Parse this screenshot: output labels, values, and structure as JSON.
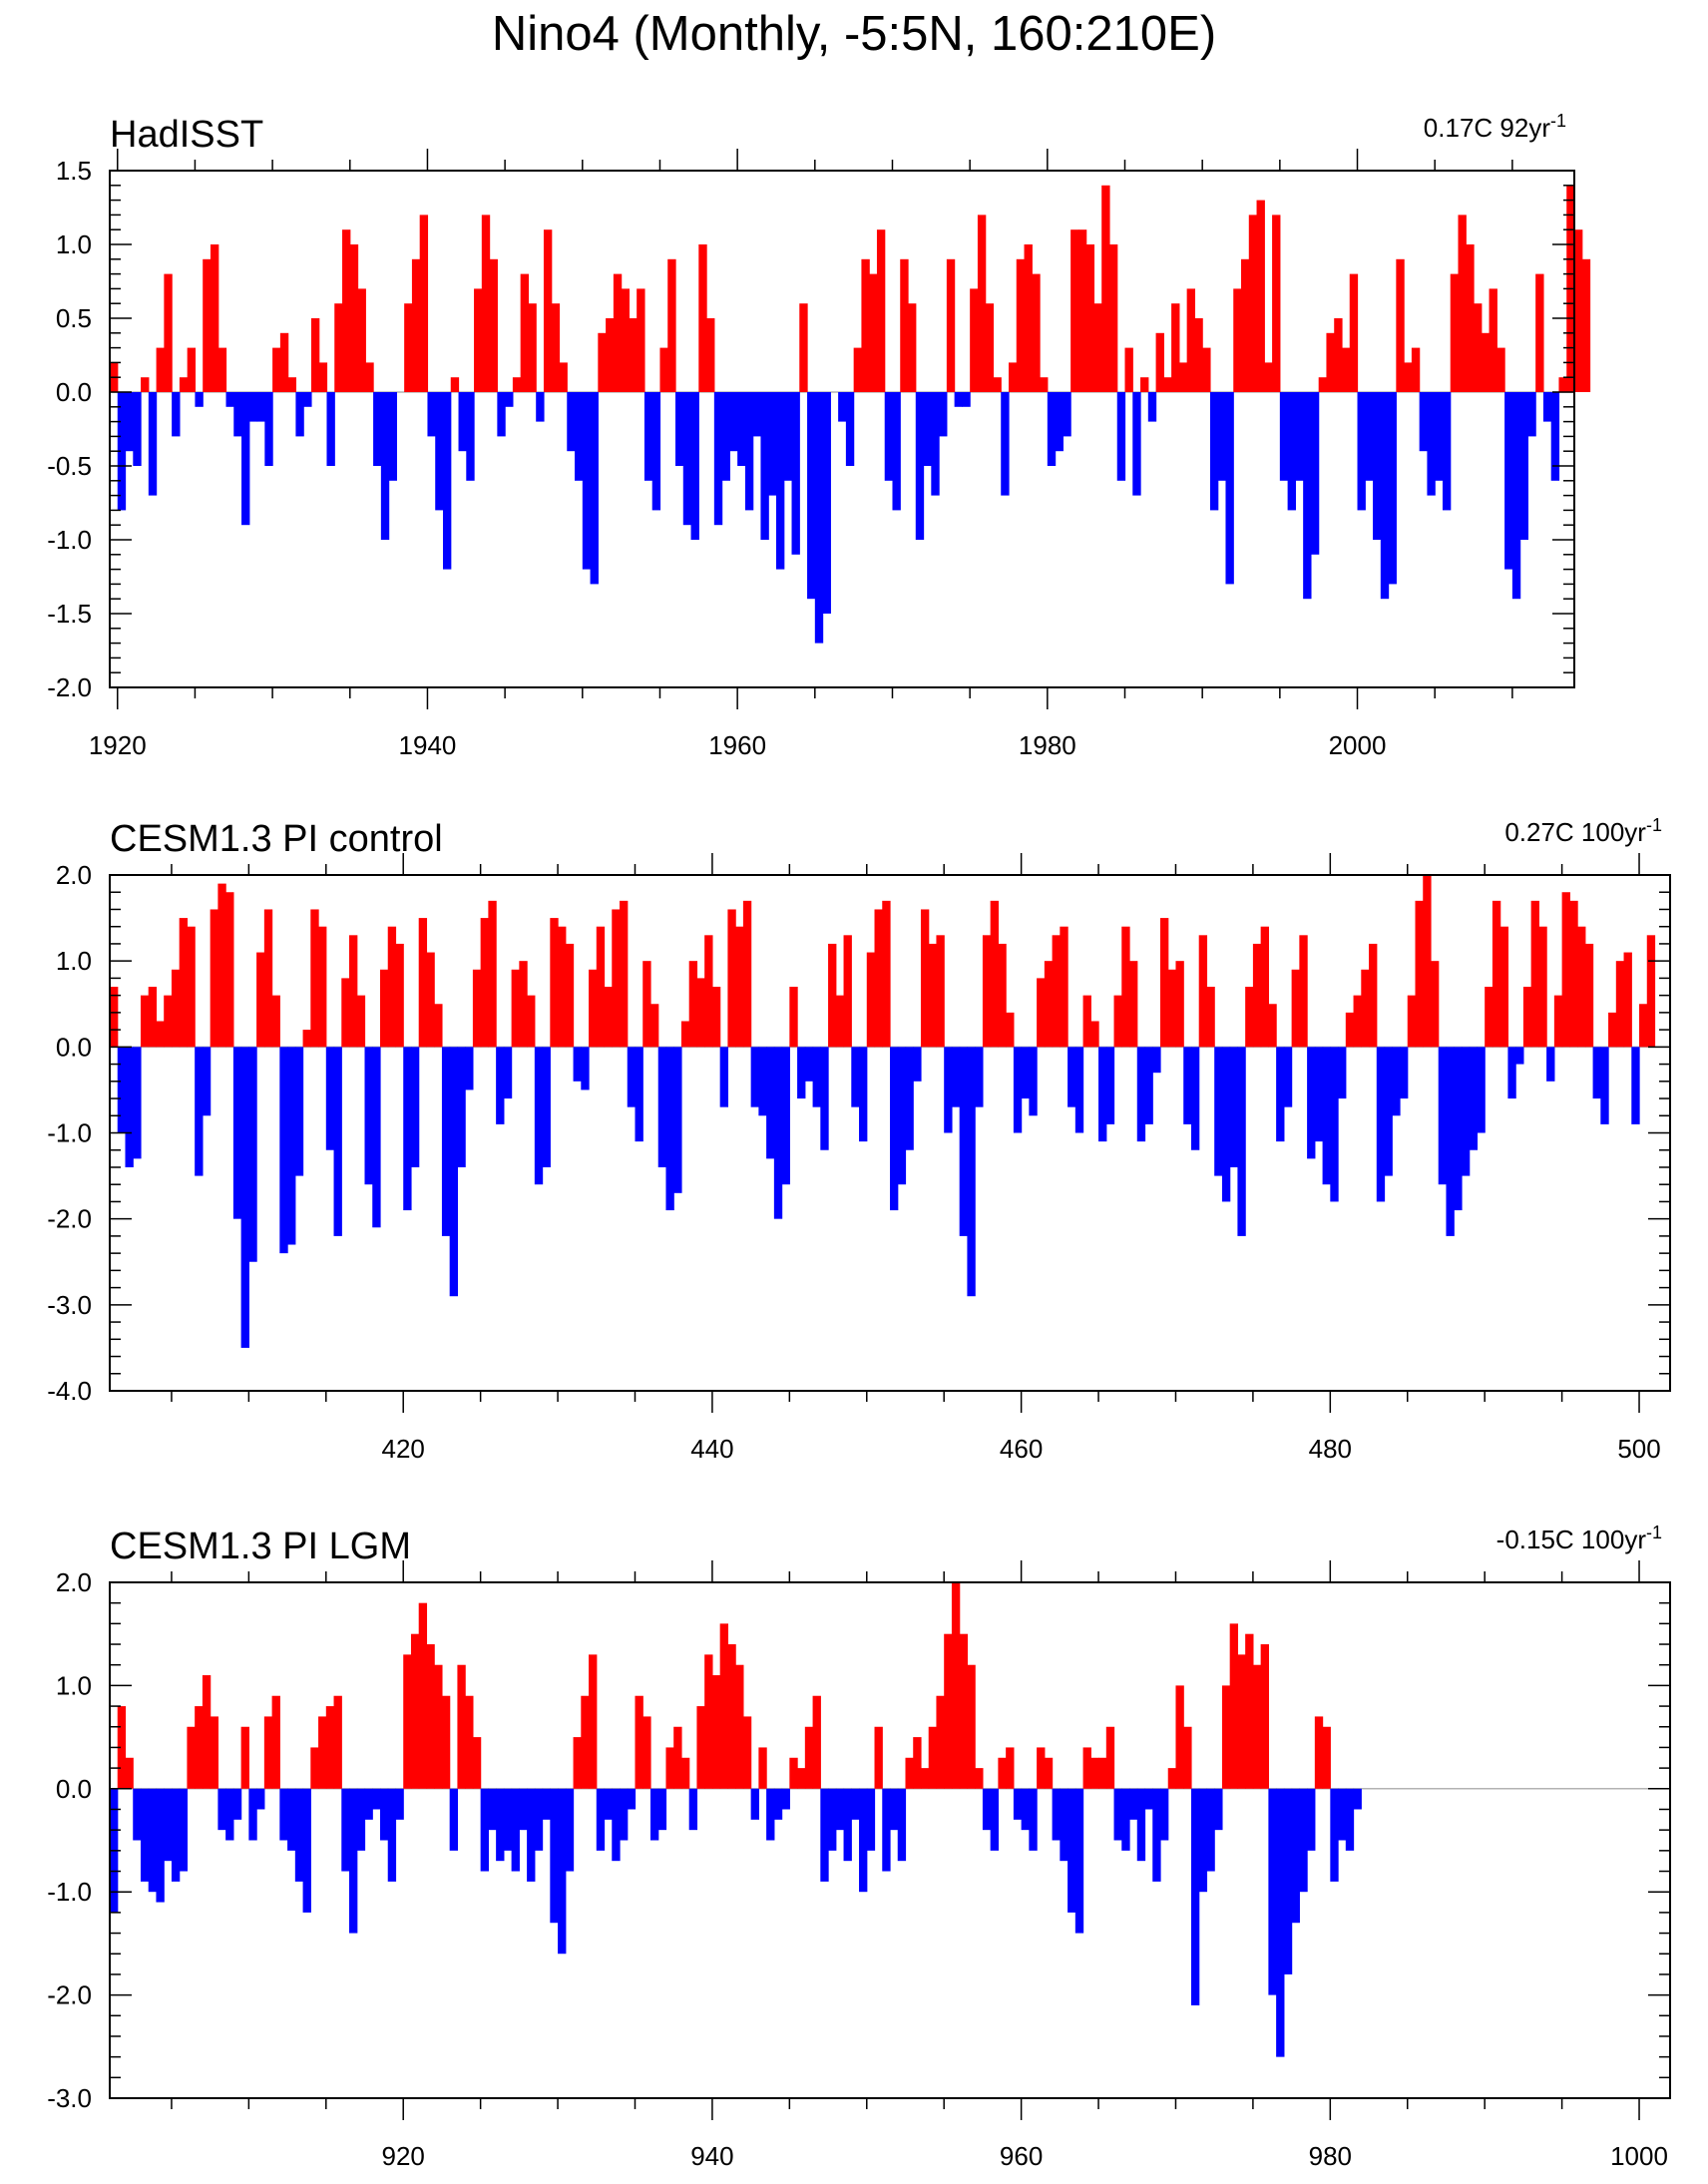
{
  "title": "Nino4 (Monthly, -5:5N, 160:210E)",
  "colors": {
    "positive": "#ff0000",
    "negative": "#0000ff",
    "axis": "#000000",
    "zero_line": "#b3b3b3"
  },
  "chart_data": [
    {
      "type": "area",
      "title": "HadISST",
      "trend_label": {
        "value": "0.17C 92yr",
        "superscript": "-1"
      },
      "xlabel": "",
      "ylabel": "",
      "xlim": [
        1919.5,
        2014
      ],
      "ylim": [
        -2.0,
        1.5
      ],
      "grid": false,
      "x_ticks": [
        "1920",
        "1940",
        "1960",
        "1980",
        "2000"
      ],
      "x_tick_values": [
        1920,
        1940,
        1960,
        1980,
        2000
      ],
      "y_ticks": [
        "1.5",
        "1.0",
        "0.5",
        "0.0",
        "-0.5",
        "-1.0",
        "-1.5",
        "-2.0"
      ],
      "y_tick_values": [
        1.5,
        1.0,
        0.5,
        0.0,
        -0.5,
        -1.0,
        -1.5,
        -2.0
      ],
      "x_start": 1919.5,
      "x_step": 0.5,
      "values": [
        0.2,
        -0.8,
        -0.4,
        -0.5,
        0.1,
        -0.7,
        0.3,
        0.8,
        -0.3,
        0.1,
        0.3,
        -0.1,
        0.9,
        1.0,
        0.3,
        -0.1,
        -0.3,
        -0.9,
        -0.2,
        -0.2,
        -0.5,
        0.3,
        0.4,
        0.1,
        -0.3,
        -0.1,
        0.5,
        0.2,
        -0.5,
        0.6,
        1.1,
        1.0,
        0.7,
        0.2,
        -0.5,
        -1.0,
        -0.6,
        0.0,
        0.6,
        0.9,
        1.2,
        -0.3,
        -0.8,
        -1.2,
        0.1,
        -0.4,
        -0.6,
        0.7,
        1.2,
        0.9,
        -0.3,
        -0.1,
        0.1,
        0.8,
        0.6,
        -0.2,
        1.1,
        0.6,
        0.2,
        -0.4,
        -0.6,
        -1.2,
        -1.3,
        0.4,
        0.5,
        0.8,
        0.7,
        0.5,
        0.7,
        -0.6,
        -0.8,
        0.3,
        0.9,
        -0.5,
        -0.9,
        -1.0,
        1.0,
        0.5,
        -0.9,
        -0.6,
        -0.4,
        -0.5,
        -0.8,
        -0.3,
        -1.0,
        -0.7,
        -1.2,
        -0.6,
        -1.1,
        0.6,
        -1.4,
        -1.7,
        -1.5,
        0.0,
        -0.2,
        -0.5,
        0.3,
        0.9,
        0.8,
        1.1,
        -0.6,
        -0.8,
        0.9,
        0.6,
        -1.0,
        -0.5,
        -0.7,
        -0.3,
        0.9,
        -0.1,
        -0.1,
        0.7,
        1.2,
        0.6,
        0.1,
        -0.7,
        0.2,
        0.9,
        1.0,
        0.8,
        0.1,
        -0.5,
        -0.4,
        -0.3,
        1.1,
        1.1,
        1.0,
        0.6,
        1.4,
        1.0,
        -0.6,
        0.3,
        -0.7,
        0.1,
        -0.2,
        0.4,
        0.1,
        0.6,
        0.2,
        0.7,
        0.5,
        0.3,
        -0.8,
        -0.6,
        -1.3,
        0.7,
        0.9,
        1.2,
        1.3,
        0.2,
        1.2,
        -0.6,
        -0.8,
        -0.6,
        -1.4,
        -1.1,
        0.1,
        0.4,
        0.5,
        0.3,
        0.8,
        -0.8,
        -0.6,
        -1.0,
        -1.4,
        -1.3,
        0.9,
        0.2,
        0.3,
        -0.4,
        -0.7,
        -0.6,
        -0.8,
        0.8,
        1.2,
        1.0,
        0.6,
        0.4,
        0.7,
        0.3,
        -1.2,
        -1.4,
        -1.0,
        -0.3,
        0.8,
        -0.2,
        -0.6,
        0.1,
        1.4,
        1.1,
        0.9
      ]
    },
    {
      "type": "area",
      "title": "CESM1.3 PI control",
      "trend_label": {
        "value": "0.27C 100yr",
        "superscript": "-1"
      },
      "xlabel": "",
      "ylabel": "",
      "xlim": [
        401,
        502
      ],
      "ylim": [
        -4.0,
        2.0
      ],
      "grid": false,
      "x_ticks": [
        "420",
        "440",
        "460",
        "480",
        "500"
      ],
      "x_tick_values": [
        420,
        440,
        460,
        480,
        500
      ],
      "y_ticks": [
        "2.0",
        "1.0",
        "0.0",
        "-1.0",
        "-2.0",
        "-3.0",
        "-4.0"
      ],
      "y_tick_values": [
        2.0,
        1.0,
        0.0,
        -1.0,
        -2.0,
        -3.0,
        -4.0
      ],
      "x_start": 401,
      "x_step": 0.5,
      "values": [
        0.7,
        -1.0,
        -1.4,
        -1.3,
        0.6,
        0.7,
        0.3,
        0.6,
        0.9,
        1.5,
        1.4,
        -1.5,
        -0.8,
        1.6,
        1.9,
        1.8,
        -2.0,
        -3.5,
        -2.5,
        1.1,
        1.6,
        0.6,
        -2.4,
        -2.3,
        -1.5,
        0.2,
        1.6,
        1.4,
        -1.2,
        -2.2,
        0.8,
        1.3,
        0.6,
        -1.6,
        -2.1,
        0.9,
        1.4,
        1.2,
        -1.9,
        -1.4,
        1.5,
        1.1,
        0.5,
        -2.2,
        -2.9,
        -1.4,
        -0.5,
        0.9,
        1.5,
        1.7,
        -0.9,
        -0.6,
        0.9,
        1.0,
        0.6,
        -1.6,
        -1.4,
        1.5,
        1.4,
        1.2,
        -0.4,
        -0.5,
        0.9,
        1.4,
        0.7,
        1.6,
        1.7,
        -0.7,
        -1.1,
        1.0,
        0.5,
        -1.4,
        -1.9,
        -1.7,
        0.3,
        1.0,
        0.8,
        1.3,
        0.7,
        -0.7,
        1.6,
        1.4,
        1.7,
        -0.7,
        -0.8,
        -1.3,
        -2.0,
        -1.6,
        0.7,
        -0.6,
        -0.4,
        -0.7,
        -1.2,
        1.2,
        0.6,
        1.3,
        -0.7,
        -1.1,
        1.1,
        1.6,
        1.7,
        -1.9,
        -1.6,
        -1.2,
        -0.4,
        1.6,
        1.2,
        1.3,
        -1.0,
        -0.7,
        -2.2,
        -2.9,
        -0.7,
        1.3,
        1.7,
        1.2,
        0.4,
        -1.0,
        -0.6,
        -0.8,
        0.8,
        1.0,
        1.3,
        1.4,
        -0.7,
        -1.0,
        0.6,
        0.3,
        -1.1,
        -0.9,
        0.6,
        1.4,
        1.0,
        -1.1,
        -0.9,
        -0.3,
        1.5,
        0.9,
        1.0,
        -0.9,
        -1.2,
        1.3,
        0.7,
        -1.5,
        -1.8,
        -1.4,
        -2.2,
        0.7,
        1.2,
        1.4,
        0.5,
        -1.1,
        -0.7,
        0.9,
        1.3,
        -1.3,
        -1.1,
        -1.6,
        -1.8,
        -0.6,
        0.4,
        0.6,
        0.9,
        1.2,
        -1.8,
        -1.5,
        -0.8,
        -0.6,
        0.6,
        1.7,
        2.0,
        1.0,
        -1.6,
        -2.2,
        -1.9,
        -1.5,
        -1.2,
        -1.0,
        0.7,
        1.7,
        1.4,
        -0.6,
        -0.2,
        0.7,
        1.7,
        1.4,
        -0.4,
        0.6,
        1.8,
        1.7,
        1.4,
        1.2,
        -0.6,
        -0.9,
        0.4,
        1.0,
        1.1,
        -0.9,
        0.5,
        1.3
      ]
    },
    {
      "type": "area",
      "title": "CESM1.3 PI LGM",
      "trend_label": {
        "value": "-0.15C 100yr",
        "superscript": "-1"
      },
      "xlabel": "",
      "ylabel": "",
      "xlim": [
        901,
        1002
      ],
      "ylim": [
        -3.0,
        2.0
      ],
      "grid": false,
      "x_ticks": [
        "920",
        "940",
        "960",
        "980",
        "1000"
      ],
      "x_tick_values": [
        920,
        940,
        960,
        980,
        1000
      ],
      "y_ticks": [
        "2.0",
        "1.0",
        "0.0",
        "-1.0",
        "-2.0",
        "-3.0"
      ],
      "y_tick_values": [
        2.0,
        1.0,
        0.0,
        -1.0,
        -2.0,
        -3.0
      ],
      "x_start": 901,
      "x_step": 0.5,
      "values": [
        -1.2,
        0.8,
        0.3,
        -0.5,
        -0.9,
        -1.0,
        -1.1,
        -0.7,
        -0.9,
        -0.8,
        0.6,
        0.8,
        1.1,
        0.7,
        -0.4,
        -0.5,
        -0.3,
        0.6,
        -0.5,
        -0.2,
        0.7,
        0.9,
        -0.5,
        -0.6,
        -0.9,
        -1.2,
        0.4,
        0.7,
        0.8,
        0.9,
        -0.8,
        -1.4,
        -0.6,
        -0.3,
        -0.2,
        -0.5,
        -0.9,
        -0.3,
        1.3,
        1.5,
        1.8,
        1.4,
        1.2,
        0.9,
        -0.6,
        1.2,
        0.9,
        0.5,
        -0.8,
        -0.4,
        -0.7,
        -0.6,
        -0.8,
        -0.4,
        -0.9,
        -0.6,
        -0.3,
        -1.3,
        -1.6,
        -0.8,
        0.5,
        0.9,
        1.3,
        -0.6,
        -0.3,
        -0.7,
        -0.5,
        -0.2,
        0.9,
        0.7,
        -0.5,
        -0.4,
        0.4,
        0.6,
        0.3,
        -0.4,
        0.8,
        1.3,
        1.1,
        1.6,
        1.4,
        1.2,
        0.7,
        -0.3,
        0.4,
        -0.5,
        -0.3,
        -0.2,
        0.3,
        0.2,
        0.6,
        0.9,
        -0.9,
        -0.6,
        -0.4,
        -0.7,
        -0.3,
        -1.0,
        -0.6,
        0.6,
        -0.8,
        -0.4,
        -0.7,
        0.3,
        0.5,
        0.2,
        0.6,
        0.9,
        1.5,
        2.0,
        1.5,
        1.2,
        0.2,
        -0.4,
        -0.6,
        0.3,
        0.4,
        -0.3,
        -0.4,
        -0.6,
        0.4,
        0.3,
        -0.5,
        -0.7,
        -1.2,
        -1.4,
        0.4,
        0.3,
        0.3,
        0.6,
        -0.5,
        -0.6,
        -0.3,
        -0.7,
        -0.2,
        -0.9,
        -0.5,
        0.2,
        1.0,
        0.6,
        -2.1,
        -1.0,
        -0.8,
        -0.4,
        1.0,
        1.6,
        1.3,
        1.5,
        1.2,
        1.4,
        -2.0,
        -2.6,
        -1.8,
        -1.3,
        -1.0,
        -0.6,
        0.7,
        0.6,
        -0.9,
        -0.5,
        -0.6,
        -0.2
      ]
    }
  ]
}
